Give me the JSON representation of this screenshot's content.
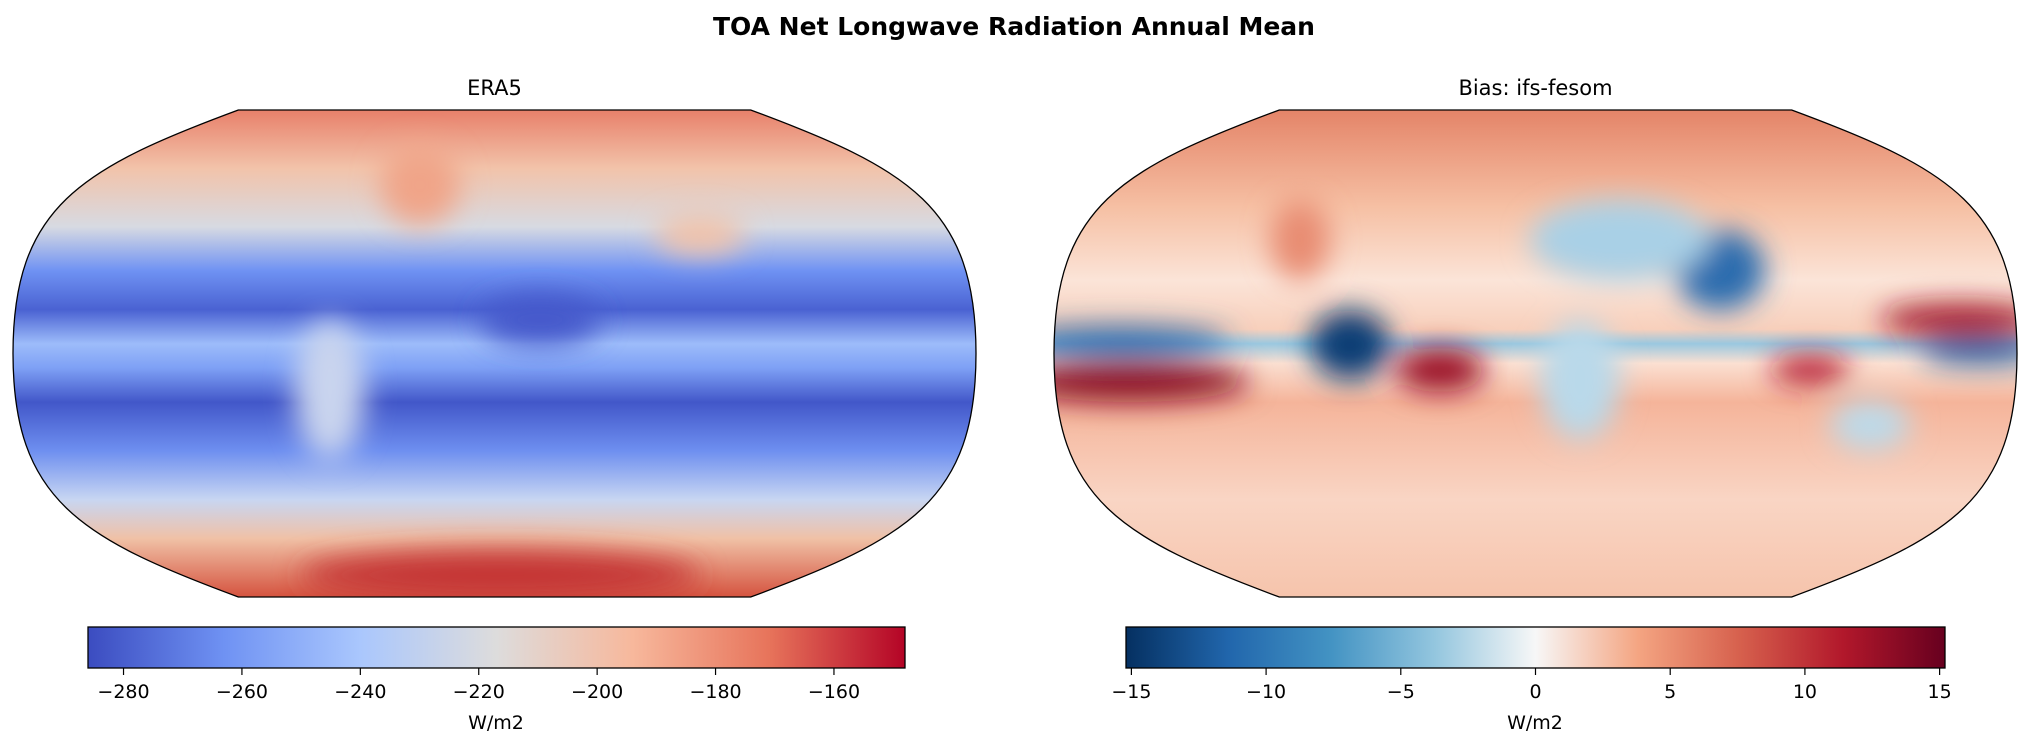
{
  "chart_data": {
    "title": "TOA Net Longwave Radiation Annual Mean",
    "panels": [
      {
        "type": "heatmap",
        "title": "ERA5",
        "projection": "Robinson",
        "colormap": "coolwarm",
        "colorbar": {
          "label": "W/m2",
          "range": [
            -286,
            -148
          ],
          "ticks": [
            -280,
            -260,
            -240,
            -220,
            -200,
            -180,
            -160
          ],
          "tick_labels": [
            "−280",
            "−260",
            "≀",
            "−220",
            "−200",
            "−180",
            "−160"
          ],
          "colors": [
            "#3b4cc0",
            "#6f92f3",
            "#aac7fd",
            "#dddcdc",
            "#f7b89c",
            "#e7745b",
            "#b40426"
          ]
        }
      },
      {
        "type": "heatmap",
        "title": "Bias: ifs-fesom",
        "projection": "Robinson",
        "colormap": "RdBu_r",
        "colorbar": {
          "label": "W/m2",
          "range": [
            -15.2,
            15.2
          ],
          "ticks": [
            -15,
            -10,
            -5,
            0,
            5,
            10,
            15
          ],
          "tick_labels": [
            "−15",
            "−10",
            "−5",
            "0",
            "5",
            "10",
            "15"
          ],
          "colors": [
            "#053061",
            "#2166ac",
            "#4393c3",
            "#92c5de",
            "#f7f7f7",
            "#f4a582",
            "#d6604d",
            "#b2182b",
            "#67001f"
          ]
        }
      }
    ]
  }
}
